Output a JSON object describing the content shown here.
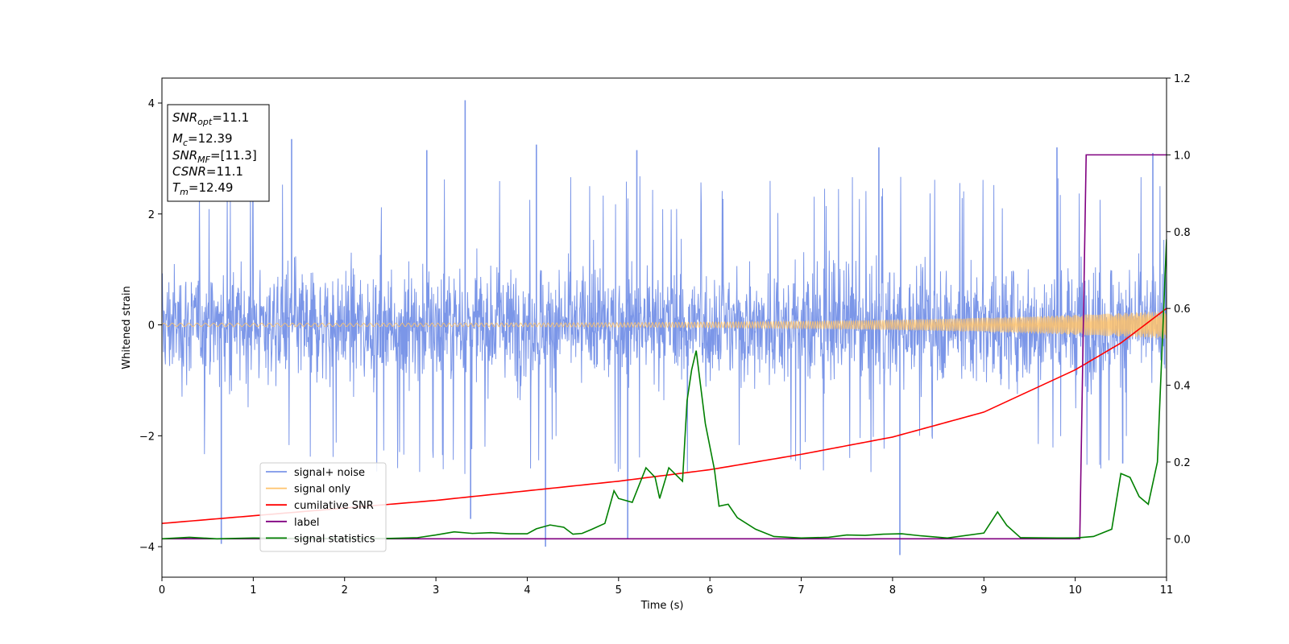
{
  "chart_data": {
    "type": "line",
    "xlabel": "Time (s)",
    "ylabel": "Whitened strain",
    "xlim": [
      0,
      11
    ],
    "ylim_left": [
      -4.55,
      4.45
    ],
    "ylim_right": [
      -0.1,
      1.2
    ],
    "grid": false,
    "x_ticks": [
      "0",
      "1",
      "2",
      "3",
      "4",
      "5",
      "6",
      "7",
      "8",
      "9",
      "10",
      "11"
    ],
    "y_ticks_left": [
      "−4",
      "−2",
      "0",
      "2",
      "4"
    ],
    "y_ticks_right": [
      "0.0",
      "0.2",
      "0.4",
      "0.6",
      "0.8",
      "1.0",
      "1.2"
    ],
    "colors": {
      "signal_noise": "#7b96e8",
      "signal_only": "#ffc36b",
      "cumulative_snr": "#ff0000",
      "label": "#800080",
      "signal_statistics": "#008000"
    },
    "legend": {
      "placement": "lower-left",
      "entries": [
        "signal+ noise",
        "signal only",
        "cumilative SNR",
        "label",
        "signal statistics"
      ]
    },
    "annotation": {
      "lines": [
        {
          "sym": "SNR",
          "sub": "opt",
          "val": "=11.1"
        },
        {
          "sym": "M",
          "sub": "c",
          "val": "=12.39"
        },
        {
          "sym": "SNR",
          "sub": "MF",
          "val": "=[11.3]"
        },
        {
          "sym": "CSNR",
          "sub": "",
          "val": "=11.1"
        },
        {
          "sym": "T",
          "sub": "m",
          "val": "=12.49"
        }
      ]
    },
    "series": [
      {
        "name": "signal+ noise",
        "axis": "left",
        "description": "noise band, roughly ±1.6 with spikes up to ~4",
        "spikes": [
          {
            "x": 0.65,
            "y": -3.95
          },
          {
            "x": 1.42,
            "y": 3.35
          },
          {
            "x": 3.32,
            "y": 4.05
          },
          {
            "x": 3.38,
            "y": -3.5
          },
          {
            "x": 4.2,
            "y": -4.0
          },
          {
            "x": 4.1,
            "y": 3.25
          },
          {
            "x": 5.2,
            "y": 3.15
          },
          {
            "x": 5.1,
            "y": -3.85
          },
          {
            "x": 8.08,
            "y": -4.15
          },
          {
            "x": 10.52,
            "y": -2.5
          },
          {
            "x": 10.85,
            "y": 3.1
          },
          {
            "x": 2.9,
            "y": 3.15
          },
          {
            "x": 7.85,
            "y": 3.2
          },
          {
            "x": 9.8,
            "y": 3.2
          }
        ]
      },
      {
        "name": "signal only",
        "axis": "left",
        "description": "chirp oscillation, amplitude 0.03 rising to 0.25"
      },
      {
        "name": "cumilative SNR",
        "axis": "right",
        "points": [
          [
            0,
            0.04
          ],
          [
            1,
            0.06
          ],
          [
            2,
            0.08
          ],
          [
            3,
            0.1
          ],
          [
            4,
            0.125
          ],
          [
            5,
            0.15
          ],
          [
            6,
            0.18
          ],
          [
            7,
            0.22
          ],
          [
            8,
            0.265
          ],
          [
            9,
            0.33
          ],
          [
            10,
            0.44
          ],
          [
            10.5,
            0.51
          ],
          [
            11,
            0.6
          ]
        ]
      },
      {
        "name": "label",
        "axis": "right",
        "points": [
          [
            0,
            0.0
          ],
          [
            10.05,
            0.0
          ],
          [
            10.12,
            1.0
          ],
          [
            11,
            1.0
          ]
        ]
      },
      {
        "name": "signal statistics",
        "axis": "right",
        "points": [
          [
            0,
            0.0
          ],
          [
            0.3,
            0.004
          ],
          [
            0.6,
            0.0
          ],
          [
            1,
            0.002
          ],
          [
            1.5,
            0.001
          ],
          [
            2,
            0.001
          ],
          [
            2.5,
            0.001
          ],
          [
            2.8,
            0.003
          ],
          [
            3.0,
            0.01
          ],
          [
            3.2,
            0.018
          ],
          [
            3.4,
            0.014
          ],
          [
            3.6,
            0.016
          ],
          [
            3.8,
            0.013
          ],
          [
            4.0,
            0.013
          ],
          [
            4.1,
            0.026
          ],
          [
            4.25,
            0.036
          ],
          [
            4.4,
            0.03
          ],
          [
            4.5,
            0.012
          ],
          [
            4.6,
            0.014
          ],
          [
            4.7,
            0.024
          ],
          [
            4.85,
            0.04
          ],
          [
            4.95,
            0.125
          ],
          [
            5.0,
            0.105
          ],
          [
            5.15,
            0.095
          ],
          [
            5.3,
            0.185
          ],
          [
            5.4,
            0.16
          ],
          [
            5.45,
            0.105
          ],
          [
            5.55,
            0.185
          ],
          [
            5.7,
            0.15
          ],
          [
            5.75,
            0.36
          ],
          [
            5.8,
            0.44
          ],
          [
            5.85,
            0.49
          ],
          [
            5.95,
            0.3
          ],
          [
            6.05,
            0.18
          ],
          [
            6.1,
            0.085
          ],
          [
            6.2,
            0.09
          ],
          [
            6.3,
            0.055
          ],
          [
            6.5,
            0.025
          ],
          [
            6.7,
            0.006
          ],
          [
            7.0,
            0.002
          ],
          [
            7.3,
            0.004
          ],
          [
            7.5,
            0.01
          ],
          [
            7.7,
            0.009
          ],
          [
            7.9,
            0.012
          ],
          [
            8.1,
            0.013
          ],
          [
            8.3,
            0.008
          ],
          [
            8.6,
            0.002
          ],
          [
            9.0,
            0.015
          ],
          [
            9.15,
            0.07
          ],
          [
            9.25,
            0.035
          ],
          [
            9.4,
            0.003
          ],
          [
            9.8,
            0.002
          ],
          [
            10.0,
            0.002
          ],
          [
            10.2,
            0.006
          ],
          [
            10.4,
            0.025
          ],
          [
            10.5,
            0.17
          ],
          [
            10.6,
            0.16
          ],
          [
            10.7,
            0.11
          ],
          [
            10.8,
            0.09
          ],
          [
            10.9,
            0.2
          ],
          [
            11.0,
            0.78
          ]
        ]
      }
    ]
  }
}
